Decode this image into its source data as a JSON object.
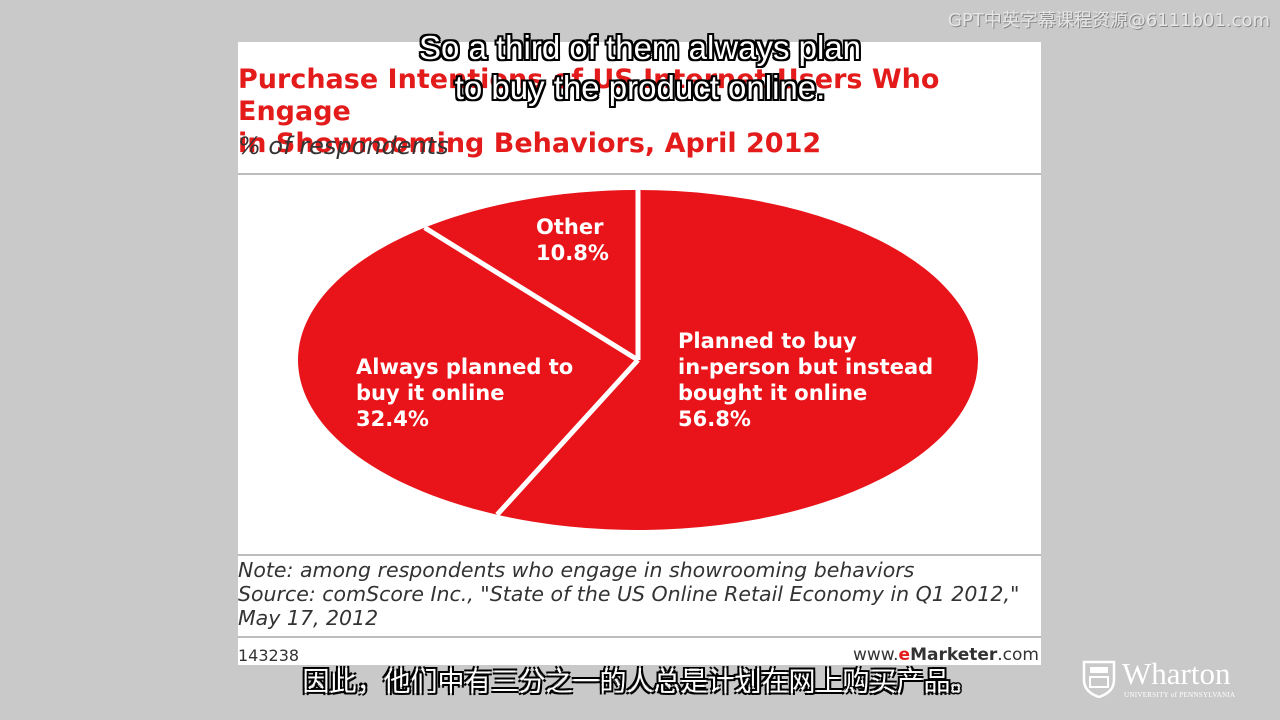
{
  "chart_data": {
    "type": "pie",
    "title_line1": "Purchase Intentions of US Internet Users Who Engage",
    "title_line2": "in Showrooming Behaviors, April 2012",
    "subtitle": "% of respondents",
    "slices": [
      {
        "label_lines": [
          "Planned to buy",
          "in-person but instead",
          "bought it online"
        ],
        "value": 56.8,
        "value_label": "56.8%"
      },
      {
        "label_lines": [
          "Always planned to",
          "buy it online"
        ],
        "value": 32.4,
        "value_label": "32.4%"
      },
      {
        "label_lines": [
          "Other"
        ],
        "value": 10.8,
        "value_label": "10.8%"
      }
    ],
    "colors": {
      "slice": "#e8141a",
      "divider": "#ffffff",
      "title": "#e31b1b"
    },
    "note_lines": [
      "Note: among respondents who engage in showrooming behaviors",
      "Source: comScore Inc., \"State of the US Online Retail Economy in Q1 2012,\"",
      "May 17, 2012"
    ],
    "chart_id": "143238",
    "brand": {
      "prefix": "www.",
      "e": "e",
      "marketer": "Marketer",
      "suffix": ".com"
    }
  },
  "captions": {
    "english_line1": "So a third of them always plan",
    "english_line2": "to buy the product online.",
    "chinese": "因此，他们中有三分之一的人总是计划在网上购买产品。"
  },
  "watermark": "GPT中英字幕课程资源@6111b01.com",
  "logo": {
    "name": "Wharton",
    "subtitle": "UNIVERSITY of PENNSYLVANIA"
  }
}
